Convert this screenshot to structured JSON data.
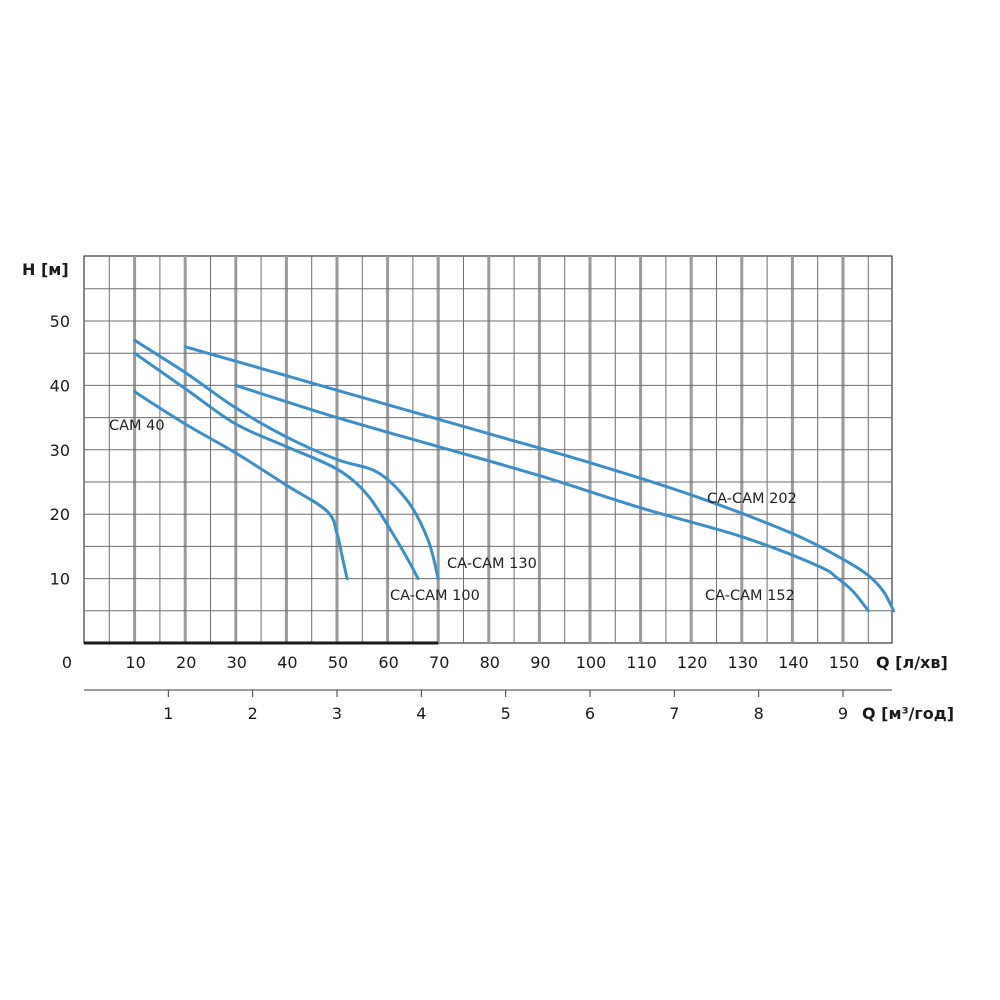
{
  "chart_data": {
    "type": "line",
    "title": "",
    "ylabel": "H [м]",
    "xlabel": "Q [л/хв]",
    "x2label": "Q [м³/год]",
    "xlim": [
      0,
      150
    ],
    "ylim": [
      0,
      60
    ],
    "x_ticks": [
      0,
      10,
      20,
      30,
      40,
      50,
      60,
      70,
      80,
      90,
      100,
      110,
      120,
      130,
      140,
      150
    ],
    "y_ticks": [
      10,
      20,
      30,
      40,
      50
    ],
    "x2_ticks": [
      1,
      2,
      3,
      4,
      5,
      6,
      7,
      8,
      9
    ],
    "x2_unit_factor": 0.06,
    "grid": true,
    "series_color": "#3a8fca",
    "series": [
      {
        "name": "CAM 40",
        "points": [
          [
            10,
            39
          ],
          [
            20,
            34
          ],
          [
            30,
            29.5
          ],
          [
            40,
            24.5
          ],
          [
            48,
            20.5
          ],
          [
            50,
            17
          ],
          [
            51,
            13.5
          ],
          [
            52,
            10
          ]
        ]
      },
      {
        "name": "CA-CAM 100",
        "points": [
          [
            10,
            45
          ],
          [
            20,
            39.5
          ],
          [
            30,
            34
          ],
          [
            40,
            30.5
          ],
          [
            50,
            27
          ],
          [
            56,
            23
          ],
          [
            61,
            17
          ],
          [
            64,
            13
          ],
          [
            66,
            10
          ]
        ]
      },
      {
        "name": "CA-CAM 130",
        "points": [
          [
            10,
            47
          ],
          [
            20,
            42
          ],
          [
            30,
            36.5
          ],
          [
            40,
            32
          ],
          [
            50,
            28.5
          ],
          [
            58,
            26.5
          ],
          [
            64,
            22
          ],
          [
            68,
            16
          ],
          [
            70,
            10
          ]
        ]
      },
      {
        "name": "CA-CAM 152",
        "points": [
          [
            30,
            40
          ],
          [
            50,
            35
          ],
          [
            70,
            30.5
          ],
          [
            90,
            26
          ],
          [
            110,
            21
          ],
          [
            130,
            16.5
          ],
          [
            145,
            12
          ],
          [
            149,
            10
          ],
          [
            152,
            8
          ],
          [
            155,
            5
          ]
        ]
      },
      {
        "name": "CA-CAM 202",
        "points": [
          [
            20,
            46
          ],
          [
            40,
            41.5
          ],
          [
            60,
            37
          ],
          [
            80,
            32.5
          ],
          [
            100,
            28
          ],
          [
            120,
            23
          ],
          [
            140,
            17
          ],
          [
            150,
            13
          ],
          [
            155,
            10.5
          ],
          [
            158,
            8
          ],
          [
            160,
            5
          ]
        ]
      }
    ]
  }
}
